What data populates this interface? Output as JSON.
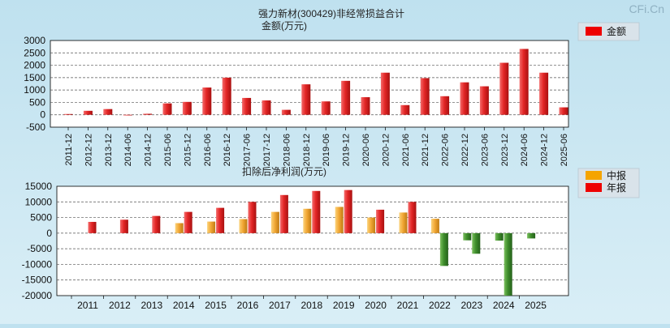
{
  "watermark": "CFi.Cn",
  "colors": {
    "accent": "#ee0000",
    "bar_red": "#e02424",
    "bar_orange": "#f0a830",
    "bar_green": "#3a8a2a"
  },
  "chart_data": [
    {
      "type": "bar",
      "title": "强力新材(300429)非经常损益合计",
      "ylabel": "金额(万元)",
      "legend": [
        "金额"
      ],
      "legend_position": "top-right",
      "ylim": [
        -500,
        3000
      ],
      "yticks": [
        3000,
        2500,
        2000,
        1500,
        1000,
        500,
        0,
        -500
      ],
      "categories": [
        "2011-12",
        "2012-12",
        "2013-12",
        "2014-06",
        "2014-12",
        "2015-06",
        "2015-12",
        "2016-06",
        "2016-12",
        "2017-06",
        "2017-12",
        "2018-06",
        "2018-12",
        "2019-06",
        "2019-12",
        "2020-06",
        "2020-12",
        "2021-06",
        "2021-12",
        "2022-06",
        "2022-12",
        "2023-06",
        "2023-12",
        "2024-06",
        "2024-12",
        "2025-06"
      ],
      "series": [
        {
          "name": "金额",
          "values": [
            30,
            160,
            230,
            -20,
            40,
            460,
            520,
            1100,
            1500,
            680,
            580,
            200,
            1230,
            540,
            1370,
            710,
            1700,
            390,
            1480,
            750,
            1310,
            1150,
            2100,
            2660,
            1700,
            300
          ]
        }
      ]
    },
    {
      "type": "bar",
      "title": "扣除后净利润(万元)",
      "legend": [
        "中报",
        "年报"
      ],
      "legend_position": "top-right",
      "ylim": [
        -20000,
        15000
      ],
      "yticks": [
        15000,
        10000,
        5000,
        0,
        -5000,
        -10000,
        -15000,
        -20000
      ],
      "categories": [
        "2011",
        "2012",
        "2013",
        "2014",
        "2015",
        "2016",
        "2017",
        "2018",
        "2019",
        "2020",
        "2021",
        "2022",
        "2023",
        "2024",
        "2025"
      ],
      "series": [
        {
          "name": "中报",
          "values": [
            null,
            null,
            null,
            3200,
            3700,
            4500,
            6800,
            7800,
            8400,
            5000,
            6600,
            4600,
            -2300,
            -2400,
            -1700
          ]
        },
        {
          "name": "年报",
          "values": [
            3600,
            4300,
            5500,
            6800,
            8100,
            10000,
            12200,
            13500,
            13800,
            7500,
            10000,
            -10500,
            -6600,
            -20000,
            null
          ]
        }
      ]
    }
  ]
}
